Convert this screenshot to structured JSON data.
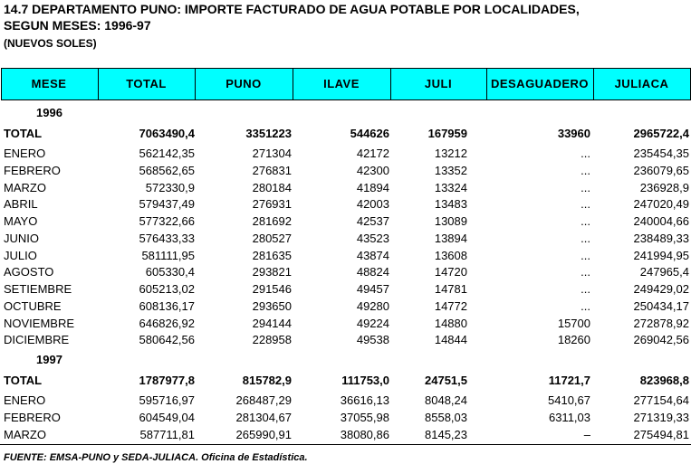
{
  "header": {
    "title": "14.7  DEPARTAMENTO PUNO: IMPORTE FACTURADO DE AGUA POTABLE POR LOCALIDADES,",
    "subtitle": "SEGUN MESES: 1996-97",
    "units": "(NUEVOS SOLES)"
  },
  "table": {
    "columns": [
      "MESE",
      "TOTAL",
      "PUNO",
      "ILAVE",
      "JULI",
      "DESAGUADERO",
      "JULIACA"
    ],
    "sections": [
      {
        "year": "1996",
        "total": [
          "TOTAL",
          "7063490,4",
          "3351223",
          "544626",
          "167959",
          "33960",
          "2965722,4"
        ],
        "rows": [
          [
            "ENERO",
            "562142,35",
            "271304",
            "42172",
            "13212",
            "...",
            "235454,35"
          ],
          [
            "FEBRERO",
            "568562,65",
            "276831",
            "42300",
            "13352",
            "...",
            "236079,65"
          ],
          [
            "MARZO",
            "572330,9",
            "280184",
            "41894",
            "13324",
            "...",
            "236928,9"
          ],
          [
            "ABRIL",
            "579437,49",
            "276931",
            "42003",
            "13483",
            "...",
            "247020,49"
          ],
          [
            "MAYO",
            "577322,66",
            "281692",
            "42537",
            "13089",
            "...",
            "240004,66"
          ],
          [
            "JUNIO",
            "576433,33",
            "280527",
            "43523",
            "13894",
            "...",
            "238489,33"
          ],
          [
            "JULIO",
            "581111,95",
            "281635",
            "43874",
            "13608",
            "...",
            "241994,95"
          ],
          [
            "AGOSTO",
            "605330,4",
            "293821",
            "48824",
            "14720",
            "...",
            "247965,4"
          ],
          [
            "SETIEMBRE",
            "605213,02",
            "291546",
            "49457",
            "14781",
            "...",
            "249429,02"
          ],
          [
            "OCTUBRE",
            "608136,17",
            "293650",
            "49280",
            "14772",
            "...",
            "250434,17"
          ],
          [
            "NOVIEMBRE",
            "646826,92",
            "294144",
            "49224",
            "14880",
            "15700",
            "272878,92"
          ],
          [
            "DICIEMBRE",
            "580642,56",
            "228958",
            "49538",
            "14844",
            "18260",
            "269042,56"
          ]
        ]
      },
      {
        "year": "1997",
        "total": [
          "TOTAL",
          "1787977,8",
          "815782,9",
          "111753,0",
          "24751,5",
          "11721,7",
          "823968,8"
        ],
        "rows": [
          [
            "ENERO",
            "595716,97",
            "268487,29",
            "36616,13",
            "8048,24",
            "5410,67",
            "277154,64"
          ],
          [
            "FEBRERO",
            "604549,04",
            "281304,67",
            "37055,98",
            "8558,03",
            "6311,03",
            "271319,33"
          ],
          [
            "MARZO",
            "587711,81",
            "265990,91",
            "38080,86",
            "8145,23",
            "–",
            "275494,81"
          ]
        ]
      }
    ]
  },
  "footer": {
    "source": "FUENTE: EMSA-PUNO y SEDA-JULIACA. Oficina de Estadística."
  }
}
